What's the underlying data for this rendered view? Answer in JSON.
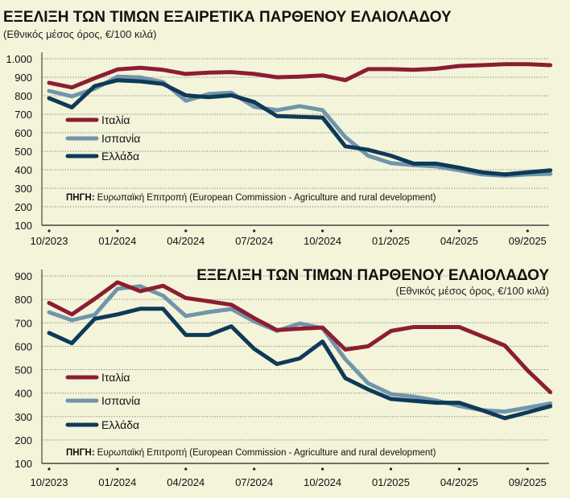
{
  "chart_data": [
    {
      "type": "line",
      "title": "ΕΞΕΛΙΞΗ ΤΩΝ ΤΙΜΩΝ ΕΞΑΙΡΕΤΙΚΑ ΠΑΡΘΕΝΟΥ ΕΛΑΙΟΛΑΔΟΥ",
      "subtitle": "(Εθνικός μέσος όρος, €/100 κιλά)",
      "source_label": "ΠΗΓΗ:",
      "source": "Ευρωπαϊκή Επιτροπή (European Commission - Agriculture and rural development)",
      "ylim": [
        100,
        1000
      ],
      "yticks": [
        "100",
        "200",
        "300",
        "400",
        "500",
        "600",
        "700",
        "800",
        "900",
        "1.000"
      ],
      "xticks": [
        {
          "i": 0,
          "label": "10/2023"
        },
        {
          "i": 3,
          "label": "01/2024"
        },
        {
          "i": 6,
          "label": "04/2024"
        },
        {
          "i": 9,
          "label": "07/2024"
        },
        {
          "i": 12,
          "label": "10/2024"
        },
        {
          "i": 15,
          "label": "01/2025"
        },
        {
          "i": 18,
          "label": "04/2025"
        },
        {
          "i": 21,
          "label": "09/2025"
        }
      ],
      "grid": true,
      "legend": "middle-left",
      "series": [
        {
          "name": "Ιταλία",
          "color": "#8c1d32",
          "values": [
            870,
            845,
            895,
            942,
            951,
            940,
            918,
            925,
            928,
            918,
            900,
            903,
            910,
            884,
            944,
            944,
            940,
            946,
            961,
            965,
            971,
            971,
            965
          ]
        },
        {
          "name": "Ισπανία",
          "color": "#7195ab",
          "values": [
            826,
            797,
            838,
            903,
            899,
            874,
            773,
            809,
            816,
            740,
            722,
            744,
            722,
            577,
            476,
            436,
            425,
            418,
            397,
            375,
            368,
            375,
            378
          ]
        },
        {
          "name": "Ελλάδα",
          "color": "#0e3a58",
          "values": [
            787,
            737,
            852,
            884,
            878,
            864,
            802,
            792,
            802,
            766,
            690,
            686,
            682,
            527,
            508,
            476,
            433,
            433,
            411,
            386,
            375,
            386,
            397
          ]
        }
      ]
    },
    {
      "type": "line",
      "title": "ΕΞΕΛΙΞΗ ΤΩΝ ΤΙΜΩΝ ΠΑΡΘΕΝΟΥ ΕΛΑΙΟΛΑΔΟΥ",
      "subtitle": "(Εθνικός μέσος όρος, €/100 κιλά)",
      "source_label": "ΠΗΓΗ:",
      "source": "Ευρωπαϊκή Επιτροπή (European Commission - Agriculture and rural development)",
      "ylim": [
        100,
        900
      ],
      "yticks": [
        "100",
        "200",
        "300",
        "400",
        "500",
        "600",
        "700",
        "800",
        "900"
      ],
      "xticks": [
        {
          "i": 0,
          "label": "10/2023"
        },
        {
          "i": 3,
          "label": "01/2024"
        },
        {
          "i": 6,
          "label": "04/2024"
        },
        {
          "i": 9,
          "label": "07/2024"
        },
        {
          "i": 12,
          "label": "10/2024"
        },
        {
          "i": 15,
          "label": "01/2025"
        },
        {
          "i": 18,
          "label": "04/2025"
        },
        {
          "i": 21,
          "label": "09/2025"
        }
      ],
      "grid": true,
      "legend": "bottom-left",
      "series": [
        {
          "name": "Ιταλία",
          "color": "#8c1d32",
          "values": [
            785,
            736,
            802,
            873,
            835,
            858,
            806,
            792,
            777,
            720,
            669,
            675,
            680,
            586,
            600,
            665,
            682,
            682,
            682,
            643,
            603,
            497,
            404
          ]
        },
        {
          "name": "Ισπανία",
          "color": "#7195ab",
          "values": [
            745,
            711,
            734,
            845,
            856,
            816,
            729,
            746,
            759,
            706,
            666,
            697,
            677,
            545,
            442,
            396,
            385,
            368,
            345,
            327,
            321,
            338,
            356
          ]
        },
        {
          "name": "Ελλάδα",
          "color": "#0e3a58",
          "values": [
            657,
            613,
            717,
            736,
            760,
            760,
            648,
            648,
            685,
            589,
            524,
            548,
            620,
            464,
            416,
            375,
            367,
            359,
            359,
            327,
            293,
            318,
            344
          ]
        }
      ]
    }
  ]
}
